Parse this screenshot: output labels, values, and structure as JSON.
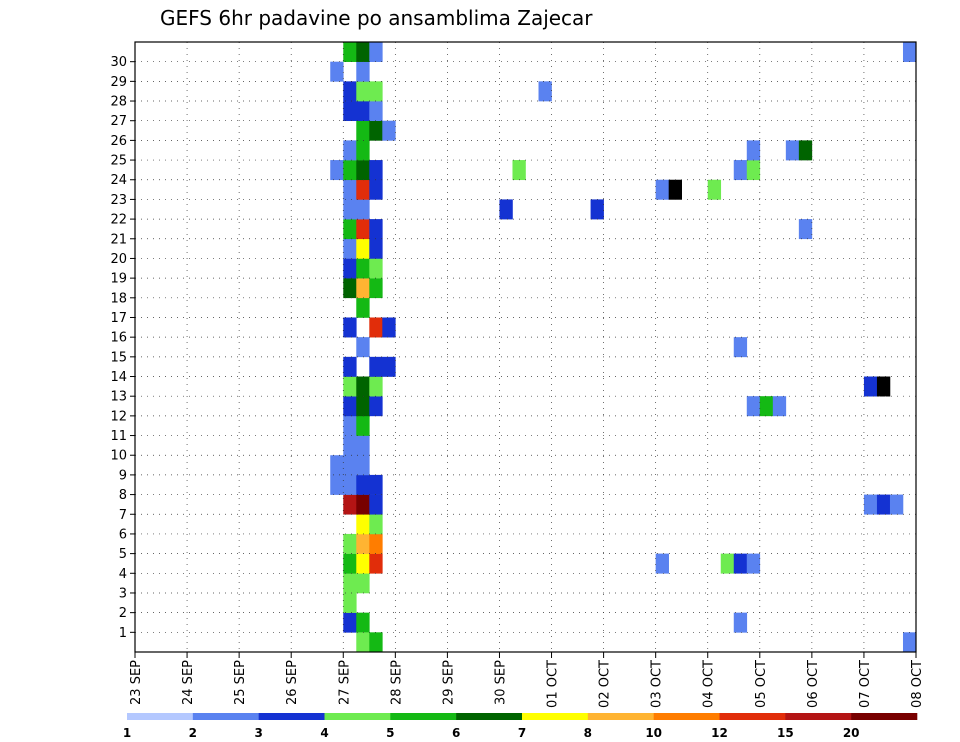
{
  "chart_data": {
    "type": "heatmap",
    "title": "GEFS 6hr padavine po ansamblima Zajecar",
    "x_ticks": [
      "23 SEP",
      "24 SEP",
      "25 SEP",
      "26 SEP",
      "27 SEP",
      "28 SEP",
      "29 SEP",
      "30 SEP",
      "01 OCT",
      "02 OCT",
      "03 OCT",
      "04 OCT",
      "05 OCT",
      "06 OCT",
      "07 OCT",
      "08 OCT"
    ],
    "y_ticks": [
      "1",
      "2",
      "3",
      "4",
      "5",
      "6",
      "7",
      "8",
      "9",
      "10",
      "11",
      "12",
      "13",
      "14",
      "15",
      "16",
      "17",
      "18",
      "19",
      "20",
      "21",
      "22",
      "23",
      "24",
      "25",
      "26",
      "27",
      "28",
      "29",
      "30"
    ],
    "x_unit": "6h steps from 23 SEP 00Z",
    "xlim": [
      0,
      60
    ],
    "ylim": [
      0,
      30
    ],
    "grid": true,
    "colorbar": {
      "labels": [
        "1",
        "2",
        "3",
        "4",
        "5",
        "6",
        "7",
        "8",
        "10",
        "12",
        "15",
        "20"
      ],
      "colors": [
        "#b4c8ff",
        "#5a82f0",
        "#1432d2",
        "#6eeb50",
        "#14b914",
        "#006400",
        "#ffff00",
        "#ffb432",
        "#ff7d00",
        "#e12d0a",
        "#b41414",
        "#780000"
      ]
    },
    "cells": [
      [
        16,
        0,
        2
      ],
      [
        17,
        0,
        4
      ],
      [
        16,
        1,
        3
      ],
      [
        16,
        2,
        3
      ],
      [
        17,
        2,
        3
      ],
      [
        16,
        3,
        4
      ],
      [
        17,
        3,
        6
      ],
      [
        18,
        3,
        9
      ],
      [
        16,
        4,
        3
      ],
      [
        17,
        4,
        7
      ],
      [
        18,
        4,
        8
      ],
      [
        17,
        5,
        6
      ],
      [
        18,
        5,
        3
      ],
      [
        16,
        6,
        10
      ],
      [
        17,
        6,
        11
      ],
      [
        18,
        6,
        2
      ],
      [
        15,
        7,
        1
      ],
      [
        16,
        7,
        1
      ],
      [
        17,
        7,
        2
      ],
      [
        18,
        7,
        2
      ],
      [
        15,
        8,
        1
      ],
      [
        16,
        8,
        1
      ],
      [
        17,
        8,
        1
      ],
      [
        16,
        9,
        1
      ],
      [
        17,
        9,
        1
      ],
      [
        16,
        10,
        1
      ],
      [
        17,
        10,
        4
      ],
      [
        16,
        11,
        2
      ],
      [
        17,
        11,
        5
      ],
      [
        18,
        11,
        2
      ],
      [
        16,
        12,
        3
      ],
      [
        17,
        12,
        5
      ],
      [
        18,
        12,
        3
      ],
      [
        16,
        13,
        2
      ],
      [
        18,
        13,
        2
      ],
      [
        19,
        13,
        2
      ],
      [
        17,
        14,
        1
      ],
      [
        16,
        15,
        2
      ],
      [
        18,
        15,
        9
      ],
      [
        19,
        15,
        2
      ],
      [
        17,
        16,
        4
      ],
      [
        16,
        17,
        5
      ],
      [
        17,
        17,
        7
      ],
      [
        18,
        17,
        4
      ],
      [
        16,
        18,
        2
      ],
      [
        17,
        18,
        4
      ],
      [
        18,
        18,
        3
      ],
      [
        16,
        19,
        1
      ],
      [
        17,
        19,
        6
      ],
      [
        18,
        19,
        2
      ],
      [
        16,
        20,
        4
      ],
      [
        17,
        20,
        9
      ],
      [
        18,
        20,
        2
      ],
      [
        16,
        21,
        1
      ],
      [
        17,
        21,
        1
      ],
      [
        16,
        22,
        1
      ],
      [
        17,
        22,
        9
      ],
      [
        18,
        22,
        2
      ],
      [
        15,
        23,
        1
      ],
      [
        16,
        23,
        4
      ],
      [
        17,
        23,
        5
      ],
      [
        18,
        23,
        2
      ],
      [
        16,
        24,
        1
      ],
      [
        17,
        24,
        4
      ],
      [
        17,
        25,
        4
      ],
      [
        18,
        25,
        5
      ],
      [
        19,
        25,
        1
      ],
      [
        16,
        26,
        2
      ],
      [
        17,
        26,
        2
      ],
      [
        18,
        26,
        1
      ],
      [
        16,
        27,
        2
      ],
      [
        17,
        27,
        3
      ],
      [
        18,
        27,
        3
      ],
      [
        15,
        28,
        1
      ],
      [
        17,
        28,
        1
      ],
      [
        16,
        29,
        4
      ],
      [
        17,
        29,
        5
      ],
      [
        18,
        29,
        1
      ],
      [
        17,
        -1,
        3
      ],
      [
        18,
        -1,
        4
      ],
      [
        28,
        21,
        2
      ],
      [
        29,
        23,
        3
      ],
      [
        31,
        27,
        1
      ],
      [
        35,
        21,
        2
      ],
      [
        40,
        22,
        1
      ],
      [
        41,
        22,
        12
      ],
      [
        44,
        22,
        3
      ],
      [
        40,
        3,
        1
      ],
      [
        45,
        3,
        3
      ],
      [
        46,
        3,
        2
      ],
      [
        47,
        3,
        1
      ],
      [
        46,
        23,
        1
      ],
      [
        47,
        23,
        3
      ],
      [
        47,
        24,
        1
      ],
      [
        50,
        24,
        1
      ],
      [
        51,
        24,
        5
      ],
      [
        47,
        11,
        1
      ],
      [
        48,
        11,
        4
      ],
      [
        49,
        11,
        1
      ],
      [
        46,
        14,
        1
      ],
      [
        51,
        20,
        1
      ],
      [
        46,
        0,
        1
      ],
      [
        56,
        12,
        2
      ],
      [
        57,
        12,
        12
      ],
      [
        56,
        6,
        1
      ],
      [
        57,
        6,
        2
      ],
      [
        58,
        6,
        1
      ],
      [
        59,
        29,
        1
      ],
      [
        59,
        -1,
        1
      ]
    ]
  }
}
